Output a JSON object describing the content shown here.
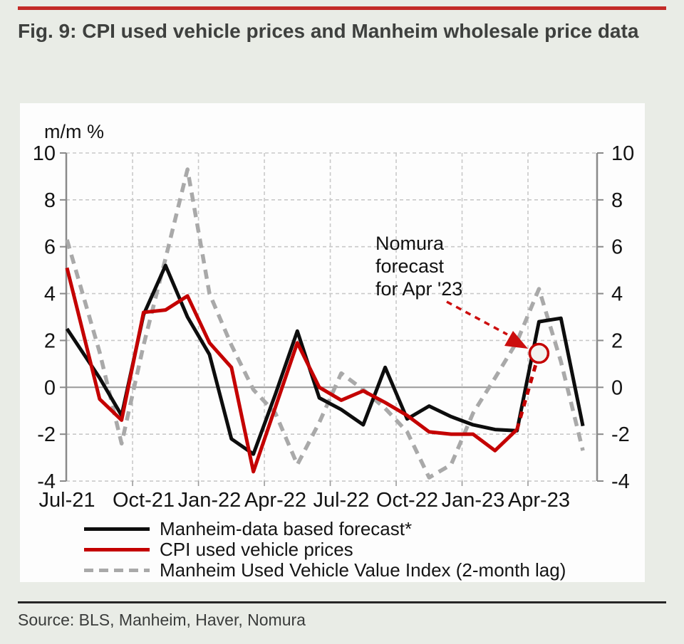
{
  "page": {
    "title": "Fig. 9: CPI used vehicle prices and Manheim wholesale price data",
    "source": "Source: BLS, Manheim, Haver, Nomura",
    "accent_red": "#c32b28"
  },
  "chart_data": {
    "type": "line",
    "title": "",
    "unit_label": "m/m %",
    "ylim": [
      -4,
      10
    ],
    "yticks": [
      10,
      8,
      6,
      4,
      2,
      0,
      -2,
      -4
    ],
    "grid": "dashed, zero line solid, axis labels on both left and right",
    "legend_position": "below chart",
    "x_tick_labels": [
      "Jul-21",
      "Oct-21",
      "Jan-22",
      "Apr-22",
      "Jul-22",
      "Oct-22",
      "Jan-23",
      "Apr-23"
    ],
    "categories": [
      "Jul-21",
      "Aug-21",
      "Sep-21",
      "Oct-21",
      "Nov-21",
      "Dec-21",
      "Jan-22",
      "Feb-22",
      "Mar-22",
      "Apr-22",
      "May-22",
      "Jun-22",
      "Jul-22",
      "Aug-22",
      "Sep-22",
      "Oct-22",
      "Nov-22",
      "Dec-22",
      "Jan-23",
      "Feb-23",
      "Mar-23",
      "Apr-23",
      "May-23",
      "Jun-23"
    ],
    "series": [
      {
        "name": "Manheim-data based forecast*",
        "color": "#0d0d0d",
        "style": "solid",
        "values": [
          2.5,
          0.4,
          -1.2,
          3.1,
          5.2,
          3.0,
          1.4,
          -2.2,
          -2.85,
          -0.3,
          2.4,
          -0.45,
          -0.95,
          -1.6,
          0.85,
          -1.35,
          -0.8,
          -1.25,
          -1.6,
          -1.8,
          -1.85,
          2.8,
          2.95,
          -1.65
        ]
      },
      {
        "name": "CPI used vehicle prices",
        "color": "#c40000",
        "style": "solid",
        "solid_through_index": 20,
        "values": [
          5.1,
          -0.5,
          -1.4,
          3.2,
          3.3,
          3.9,
          1.9,
          0.85,
          -3.6,
          -0.85,
          1.9,
          0.0,
          -0.55,
          -0.15,
          -0.65,
          -1.2,
          -1.9,
          -2.0,
          -2.0,
          -2.7,
          -1.8,
          1.45
        ],
        "forecast_point": {
          "month": "Apr-23",
          "value": 1.45,
          "marker": "open-circle"
        }
      },
      {
        "name": "Manheim Used Vehicle Value Index (2-month lag)",
        "color": "#a9a9a9",
        "style": "dashed",
        "values": [
          6.3,
          1.5,
          -2.4,
          1.8,
          5.5,
          9.3,
          4.0,
          1.8,
          -0.1,
          -1.1,
          -3.3,
          -1.5,
          0.6,
          -0.1,
          -0.9,
          -1.9,
          -3.85,
          -3.3,
          -1.1,
          0.4,
          1.95,
          4.2,
          1.1,
          -2.7
        ]
      }
    ],
    "annotation": {
      "lines": [
        "Nomura",
        "forecast",
        "for Apr '23"
      ],
      "arrow_color": "#cc0e0e",
      "target_month": "Apr-23"
    }
  }
}
